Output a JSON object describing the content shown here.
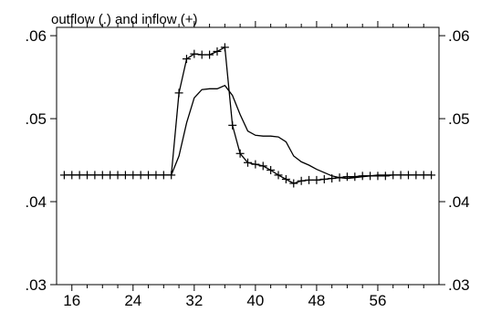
{
  "chart_data": {
    "type": "line",
    "title": "outflow (.) and inflow (+)",
    "xlabel": "",
    "ylabel": "",
    "xlim": [
      14,
      64
    ],
    "ylim": [
      0.03,
      0.061
    ],
    "x_ticks": [
      16,
      24,
      32,
      40,
      48,
      56
    ],
    "x_tick_labels": [
      "16",
      "24",
      "32",
      "40",
      "48",
      "56"
    ],
    "y_ticks": [
      0.03,
      0.04,
      0.05,
      0.06
    ],
    "y_tick_labels": [
      ".03",
      ".04",
      ".05",
      ".06"
    ],
    "grid": false,
    "legend": "none",
    "series": [
      {
        "key": "outflow",
        "marker": "none",
        "color": "#000000",
        "x": [
          15,
          16,
          17,
          18,
          19,
          20,
          21,
          22,
          23,
          24,
          25,
          26,
          27,
          28,
          29,
          30,
          31,
          32,
          33,
          34,
          35,
          36,
          37,
          38,
          39,
          40,
          41,
          42,
          43,
          44,
          45,
          46,
          47,
          48,
          49,
          50,
          51,
          52,
          53,
          54,
          55,
          56,
          57,
          58,
          59,
          60,
          61,
          62,
          63
        ],
        "y": [
          0.0432,
          0.0432,
          0.0432,
          0.0432,
          0.0432,
          0.0432,
          0.0432,
          0.0432,
          0.0432,
          0.0432,
          0.0432,
          0.0432,
          0.0432,
          0.0432,
          0.0432,
          0.0455,
          0.0495,
          0.0525,
          0.0535,
          0.0536,
          0.0536,
          0.054,
          0.0528,
          0.0505,
          0.0485,
          0.048,
          0.0479,
          0.0479,
          0.0478,
          0.0472,
          0.0455,
          0.0448,
          0.0444,
          0.0439,
          0.0435,
          0.0431,
          0.0429,
          0.0428,
          0.0429,
          0.043,
          0.0431,
          0.0432,
          0.0432,
          0.0432,
          0.0432,
          0.0432,
          0.0432,
          0.0432,
          0.0432
        ]
      },
      {
        "key": "inflow",
        "marker": "+",
        "color": "#000000",
        "x": [
          15,
          16,
          17,
          18,
          19,
          20,
          21,
          22,
          23,
          24,
          25,
          26,
          27,
          28,
          29,
          30,
          31,
          32,
          33,
          34,
          35,
          36,
          37,
          38,
          39,
          40,
          41,
          42,
          43,
          44,
          45,
          46,
          47,
          48,
          49,
          50,
          51,
          52,
          53,
          54,
          55,
          56,
          57,
          58,
          59,
          60,
          61,
          62,
          63
        ],
        "y": [
          0.0432,
          0.0432,
          0.0432,
          0.0432,
          0.0432,
          0.0432,
          0.0432,
          0.0432,
          0.0432,
          0.0432,
          0.0432,
          0.0432,
          0.0432,
          0.0432,
          0.0432,
          0.0531,
          0.0572,
          0.0578,
          0.0577,
          0.0577,
          0.0581,
          0.0586,
          0.0492,
          0.0458,
          0.0447,
          0.0445,
          0.0443,
          0.0438,
          0.0432,
          0.0427,
          0.0422,
          0.0425,
          0.0426,
          0.0426,
          0.0427,
          0.0428,
          0.0429,
          0.043,
          0.043,
          0.0431,
          0.0431,
          0.0431,
          0.0431,
          0.0432,
          0.0432,
          0.0432,
          0.0432,
          0.0432,
          0.0432
        ]
      }
    ]
  }
}
